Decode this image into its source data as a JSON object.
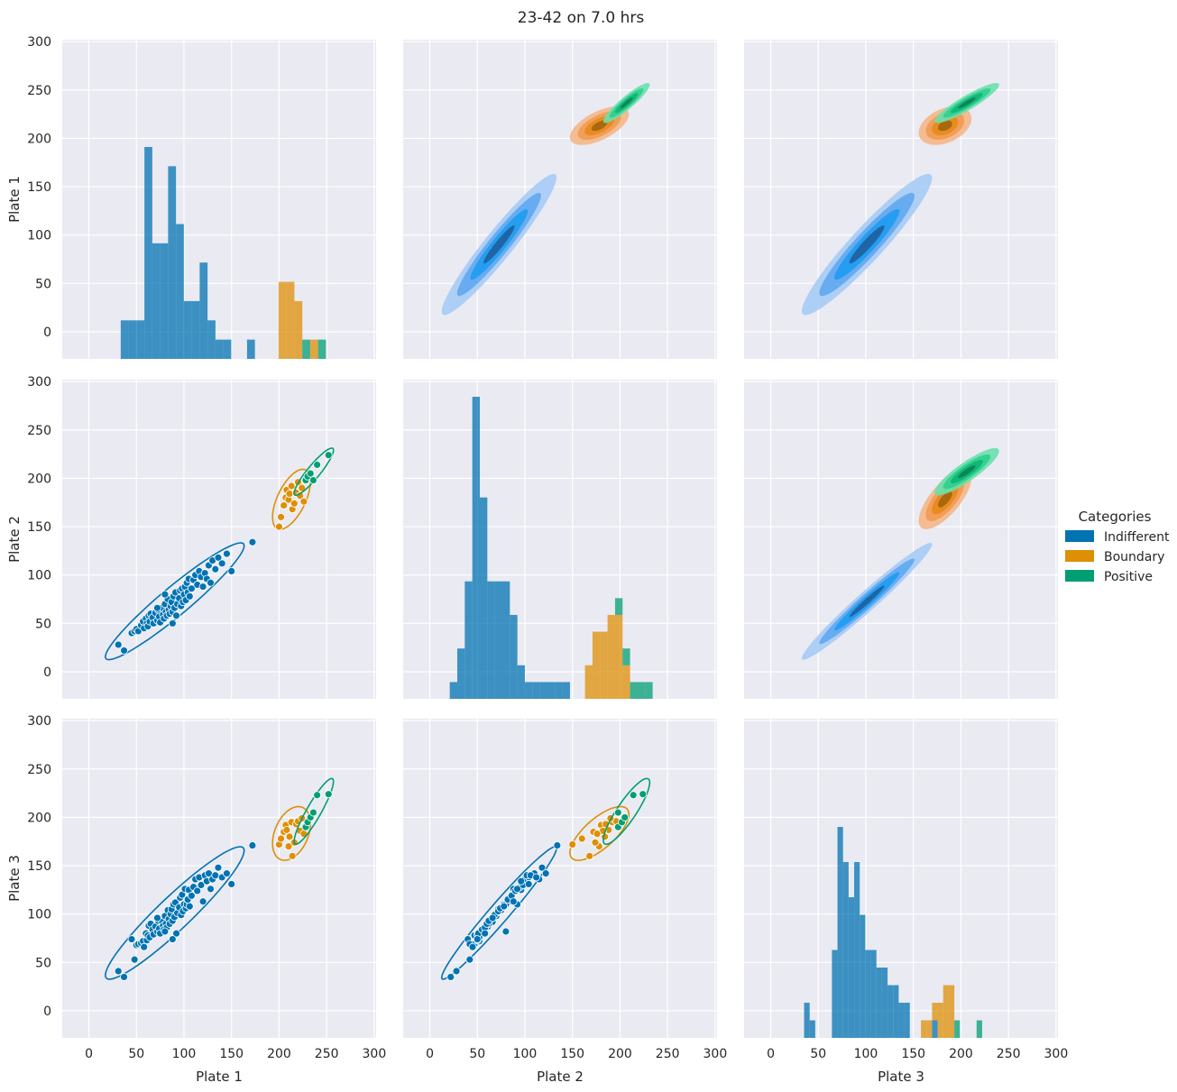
{
  "title": "23-42 on 7.0 hrs",
  "legend": {
    "title": "Categories",
    "placement": "right-center",
    "entries": [
      {
        "name": "Indifferent",
        "color": "#0173b2"
      },
      {
        "name": "Boundary",
        "color": "#de8f05"
      },
      {
        "name": "Positive",
        "color": "#029e73"
      }
    ]
  },
  "variables": [
    "Plate 1",
    "Plate 2",
    "Plate 3"
  ],
  "chart_data": {
    "type": "scatter",
    "kind": "pairplot",
    "axis_range": [
      -28,
      302
    ],
    "ticks": [
      0,
      50,
      100,
      150,
      200,
      250,
      300
    ],
    "grid": true,
    "hue": "Categories",
    "diagonal": "histogram (stacked by category)",
    "lower": "scatter with KDE contour",
    "upper": "filled KDE",
    "scatter_points": {
      "Indifferent": [
        [
          31,
          28,
          41
        ],
        [
          37,
          22,
          35
        ],
        [
          45,
          40,
          74
        ],
        [
          48,
          42,
          53
        ],
        [
          50,
          44,
          68
        ],
        [
          52,
          42,
          69
        ],
        [
          55,
          48,
          70
        ],
        [
          57,
          52,
          72
        ],
        [
          58,
          45,
          66
        ],
        [
          60,
          55,
          80
        ],
        [
          61,
          50,
          73
        ],
        [
          62,
          47,
          78
        ],
        [
          63,
          58,
          88
        ],
        [
          64,
          52,
          76
        ],
        [
          65,
          60,
          90
        ],
        [
          67,
          56,
          84
        ],
        [
          68,
          50,
          79
        ],
        [
          70,
          61,
          87
        ],
        [
          72,
          53,
          82
        ],
        [
          73,
          64,
          93
        ],
        [
          74,
          57,
          85
        ],
        [
          75,
          51,
          80
        ],
        [
          77,
          66,
          92
        ],
        [
          78,
          59,
          88
        ],
        [
          79,
          55,
          84
        ],
        [
          80,
          70,
          98
        ],
        [
          81,
          62,
          90
        ],
        [
          82,
          58,
          86
        ],
        [
          83,
          75,
          104
        ],
        [
          84,
          64,
          95
        ],
        [
          85,
          60,
          90
        ],
        [
          86,
          68,
          100
        ],
        [
          87,
          72,
          105
        ],
        [
          88,
          62,
          93
        ],
        [
          89,
          78,
          110
        ],
        [
          90,
          66,
          97
        ],
        [
          91,
          82,
          112
        ],
        [
          92,
          58,
          80
        ],
        [
          93,
          70,
          101
        ],
        [
          95,
          76,
          107
        ],
        [
          96,
          84,
          117
        ],
        [
          97,
          68,
          99
        ],
        [
          98,
          86,
          120
        ],
        [
          99,
          72,
          103
        ],
        [
          100,
          80,
          110
        ],
        [
          101,
          88,
          126
        ],
        [
          102,
          74,
          106
        ],
        [
          103,
          92,
          110
        ],
        [
          104,
          82,
          115
        ],
        [
          105,
          96,
          125
        ],
        [
          106,
          78,
          108
        ],
        [
          108,
          86,
          119
        ],
        [
          110,
          95,
          128
        ],
        [
          112,
          100,
          136
        ],
        [
          114,
          90,
          124
        ],
        [
          116,
          104,
          138
        ],
        [
          118,
          98,
          130
        ],
        [
          120,
          88,
          113
        ],
        [
          122,
          102,
          140
        ],
        [
          124,
          96,
          134
        ],
        [
          126,
          110,
          142
        ],
        [
          128,
          92,
          126
        ],
        [
          130,
          115,
          136
        ],
        [
          133,
          106,
          140
        ],
        [
          136,
          118,
          148
        ],
        [
          140,
          112,
          138
        ],
        [
          145,
          122,
          142
        ],
        [
          150,
          104,
          131
        ],
        [
          172,
          134,
          171
        ],
        [
          80,
          80,
          82
        ],
        [
          72,
          66,
          96
        ],
        [
          88,
          50,
          74
        ]
      ],
      "Boundary": [
        [
          200,
          150,
          172
        ],
        [
          202,
          160,
          178
        ],
        [
          205,
          172,
          185
        ],
        [
          207,
          180,
          192
        ],
        [
          208,
          188,
          187
        ],
        [
          210,
          178,
          170
        ],
        [
          211,
          184,
          180
        ],
        [
          213,
          192,
          195
        ],
        [
          214,
          168,
          160
        ],
        [
          216,
          174,
          174
        ],
        [
          218,
          185,
          193
        ],
        [
          220,
          196,
          196
        ],
        [
          222,
          182,
          186
        ],
        [
          224,
          190,
          199
        ],
        [
          226,
          176,
          183
        ]
      ],
      "Positive": [
        [
          228,
          198,
          190
        ],
        [
          230,
          202,
          195
        ],
        [
          233,
          205,
          200
        ],
        [
          236,
          198,
          205
        ],
        [
          240,
          214,
          223
        ],
        [
          252,
          224,
          224
        ]
      ]
    },
    "histogram_bins": {
      "Plate 1": {
        "bin_width": 8.3,
        "Indifferent": [
          [
            33.5,
            2
          ],
          [
            41.8,
            2
          ],
          [
            50.1,
            2
          ],
          [
            58.4,
            11
          ],
          [
            66.7,
            6
          ],
          [
            75,
            6
          ],
          [
            83.3,
            10
          ],
          [
            91.6,
            7
          ],
          [
            99.9,
            3
          ],
          [
            108.2,
            3
          ],
          [
            116.5,
            5
          ],
          [
            124.8,
            2
          ],
          [
            133.1,
            1
          ],
          [
            141.4,
            1
          ],
          [
            166.3,
            1
          ]
        ],
        "Boundary": [
          [
            199.5,
            4
          ],
          [
            207.8,
            4
          ],
          [
            216.1,
            3
          ],
          [
            232.7,
            1
          ]
        ],
        "Positive": [
          [
            224.4,
            1
          ],
          [
            241,
            1
          ]
        ]
      },
      "Plate 2": {
        "bin_width": 7.9,
        "Indifferent": [
          [
            21,
            1
          ],
          [
            28.9,
            3
          ],
          [
            36.8,
            7
          ],
          [
            44.7,
            18
          ],
          [
            52.6,
            12
          ],
          [
            60.5,
            7
          ],
          [
            68.4,
            7
          ],
          [
            76.3,
            7
          ],
          [
            84.2,
            5
          ],
          [
            92.1,
            2
          ],
          [
            100,
            1
          ],
          [
            107.9,
            1
          ],
          [
            115.8,
            1
          ],
          [
            123.7,
            1
          ],
          [
            131.6,
            1
          ],
          [
            139.5,
            1
          ]
        ],
        "Boundary": [
          [
            163.2,
            2
          ],
          [
            171.1,
            4
          ],
          [
            179,
            4
          ],
          [
            186.9,
            5
          ],
          [
            194.8,
            5
          ],
          [
            202.7,
            2
          ]
        ],
        "Positive": [
          [
            194.8,
            1
          ],
          [
            202.7,
            1
          ],
          [
            210.6,
            1
          ],
          [
            218.5,
            1
          ],
          [
            226.4,
            1
          ]
        ]
      },
      "Plate 3": {
        "bin_width": 5.85,
        "Indifferent": [
          [
            35.1,
            2
          ],
          [
            40.95,
            1
          ],
          [
            64.35,
            5
          ],
          [
            70.2,
            12
          ],
          [
            76.05,
            10
          ],
          [
            81.9,
            8
          ],
          [
            87.75,
            10
          ],
          [
            93.6,
            7
          ],
          [
            99.45,
            5
          ],
          [
            105.3,
            5
          ],
          [
            111.15,
            4
          ],
          [
            117,
            4
          ],
          [
            122.85,
            3
          ],
          [
            128.7,
            3
          ],
          [
            134.55,
            2
          ],
          [
            140.4,
            2
          ],
          [
            169.65,
            1
          ]
        ],
        "Boundary": [
          [
            157.95,
            1
          ],
          [
            163.8,
            1
          ],
          [
            169.65,
            1
          ],
          [
            175.5,
            2
          ],
          [
            181.35,
            3
          ],
          [
            187.2,
            3
          ]
        ],
        "Positive": [
          [
            193.05,
            1
          ],
          [
            216.45,
            1
          ]
        ]
      }
    }
  }
}
